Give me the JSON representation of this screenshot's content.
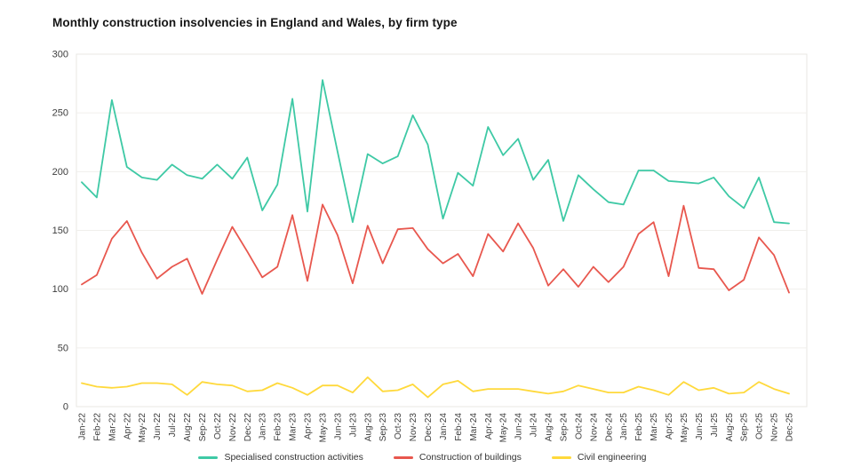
{
  "title": "Monthly construction insolvencies in England and Wales, by firm type",
  "colors": {
    "background": "#ffffff",
    "gridline": "#f0efec",
    "plot_border": "#e8e7e3",
    "axis_text": "#3d3d3d",
    "title_text": "#151515"
  },
  "chart_data": {
    "type": "line",
    "title": "Monthly construction insolvencies in England and Wales, by firm type",
    "xlabel": "",
    "ylabel": "",
    "ylim": [
      0,
      300
    ],
    "yticks": [
      0,
      50,
      100,
      150,
      200,
      250,
      300
    ],
    "grid": "horizontal",
    "legend_position": "bottom",
    "categories": [
      "Jan-22",
      "Feb-22",
      "Mar-22",
      "Apr-22",
      "May-22",
      "Jun-22",
      "Jul-22",
      "Aug-22",
      "Sep-22",
      "Oct-22",
      "Nov-22",
      "Dec-22",
      "Jan-23",
      "Feb-23",
      "Mar-23",
      "Apr-23",
      "May-23",
      "Jun-23",
      "Jul-23",
      "Aug-23",
      "Sep-23",
      "Oct-23",
      "Nov-23",
      "Dec-23",
      "Jan-24",
      "Feb-24",
      "Mar-24",
      "Apr-24",
      "May-24",
      "Jun-24",
      "Jul-24",
      "Aug-24",
      "Sep-24",
      "Oct-24",
      "Nov-24",
      "Dec-24",
      "Jan-25",
      "Feb-25",
      "Mar-25",
      "Apr-25",
      "May-25",
      "Jun-25",
      "Jul-25",
      "Aug-25",
      "Sep-25",
      "Oct-25",
      "Nov-25",
      "Dec-25"
    ],
    "series": [
      {
        "name": "Specialised construction activities",
        "color": "#3EC9A5",
        "values": [
          191,
          178,
          261,
          204,
          195,
          193,
          206,
          197,
          194,
          206,
          194,
          212,
          167,
          189,
          262,
          166,
          278,
          217,
          157,
          215,
          207,
          213,
          248,
          223,
          160,
          199,
          188,
          238,
          214,
          228,
          193,
          210,
          158,
          197,
          185,
          174,
          172,
          201,
          201,
          192,
          191,
          190,
          195,
          179,
          169,
          195,
          157,
          156
        ]
      },
      {
        "name": "Construction of buildings",
        "color": "#E8574E",
        "values": [
          104,
          112,
          143,
          158,
          131,
          109,
          119,
          126,
          96,
          125,
          153,
          132,
          110,
          119,
          163,
          107,
          172,
          146,
          105,
          154,
          122,
          151,
          152,
          134,
          122,
          130,
          111,
          147,
          132,
          156,
          135,
          103,
          117,
          102,
          119,
          106,
          119,
          147,
          157,
          111,
          171,
          118,
          117,
          99,
          108,
          144,
          129,
          97
        ]
      },
      {
        "name": "Civil engineering",
        "color": "#FFD93B",
        "values": [
          20,
          17,
          16,
          17,
          20,
          20,
          19,
          10,
          21,
          19,
          18,
          13,
          14,
          20,
          16,
          10,
          18,
          18,
          12,
          25,
          13,
          14,
          19,
          8,
          19,
          22,
          13,
          15,
          15,
          15,
          13,
          11,
          13,
          18,
          15,
          12,
          12,
          17,
          14,
          10,
          21,
          14,
          16,
          11,
          12,
          21,
          15,
          11
        ]
      }
    ]
  }
}
